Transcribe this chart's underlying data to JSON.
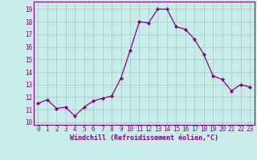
{
  "x": [
    0,
    1,
    2,
    3,
    4,
    5,
    6,
    7,
    8,
    9,
    10,
    11,
    12,
    13,
    14,
    15,
    16,
    17,
    18,
    19,
    20,
    21,
    22,
    23
  ],
  "y": [
    11.5,
    11.8,
    11.1,
    11.2,
    10.5,
    11.2,
    11.7,
    11.9,
    12.1,
    13.5,
    15.7,
    18.0,
    17.9,
    19.0,
    19.0,
    17.6,
    17.4,
    16.6,
    15.4,
    13.7,
    13.4,
    12.5,
    13.0,
    12.8
  ],
  "line_color": "#880088",
  "marker": "D",
  "marker_size": 2.0,
  "bg_color": "#c8ece8",
  "grid_color": "#a8ccc8",
  "xlabel": "Windchill (Refroidissement éolien,°C)",
  "xlabel_color": "#880088",
  "tick_color": "#880088",
  "spine_color": "#880088",
  "ylabel_ticks": [
    10,
    11,
    12,
    13,
    14,
    15,
    16,
    17,
    18,
    19
  ],
  "xlim": [
    -0.5,
    23.5
  ],
  "ylim": [
    9.8,
    19.6
  ],
  "xticks": [
    0,
    1,
    2,
    3,
    4,
    5,
    6,
    7,
    8,
    9,
    10,
    11,
    12,
    13,
    14,
    15,
    16,
    17,
    18,
    19,
    20,
    21,
    22,
    23
  ],
  "tick_fontsize": 5.5,
  "xlabel_fontsize": 6.0
}
